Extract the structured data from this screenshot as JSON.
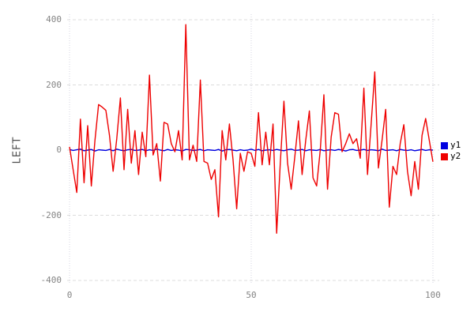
{
  "chart_data": {
    "type": "line",
    "title": "",
    "xlabel": "",
    "ylabel": "LEFT",
    "xlim": [
      0,
      100
    ],
    "ylim": [
      -400,
      400
    ],
    "xticks": [
      "0",
      "50",
      "100"
    ],
    "xtick_values": [
      0,
      50,
      100
    ],
    "yticks": [
      "400",
      "200",
      "0",
      "-200",
      "-400"
    ],
    "ytick_values": [
      400,
      200,
      0,
      -200,
      -400
    ],
    "grid": "horizontal dashed + vertical dotted, light gray",
    "legend_position": "right-middle",
    "x": [
      0,
      1,
      2,
      3,
      4,
      5,
      6,
      7,
      8,
      9,
      10,
      11,
      12,
      13,
      14,
      15,
      16,
      17,
      18,
      19,
      20,
      21,
      22,
      23,
      24,
      25,
      26,
      27,
      28,
      29,
      30,
      31,
      32,
      33,
      34,
      35,
      36,
      37,
      38,
      39,
      40,
      41,
      42,
      43,
      44,
      45,
      46,
      47,
      48,
      49,
      50,
      51,
      52,
      53,
      54,
      55,
      56,
      57,
      58,
      59,
      60,
      61,
      62,
      63,
      64,
      65,
      66,
      67,
      68,
      69,
      70,
      71,
      72,
      73,
      74,
      75,
      76,
      77,
      78,
      79,
      80,
      81,
      82,
      83,
      84,
      85,
      86,
      87,
      88,
      89,
      90,
      91,
      92,
      93,
      94,
      95,
      96,
      97,
      98,
      99,
      100
    ],
    "series": [
      {
        "name": "y1",
        "color": "#0000e0",
        "values": [
          2,
          -1,
          1,
          3,
          -2,
          0,
          2,
          -3,
          1,
          0,
          -1,
          2,
          -2,
          3,
          0,
          -2,
          1,
          2,
          -1,
          0,
          2,
          -2,
          1,
          -1,
          3,
          0,
          -2,
          2,
          -1,
          1,
          0,
          -3,
          2,
          1,
          -1,
          0,
          2,
          -2,
          1,
          0,
          -1,
          2,
          -3,
          1,
          2,
          0,
          -2,
          1,
          -1,
          0,
          3,
          -1,
          2,
          -2,
          0,
          1,
          -1,
          2,
          0,
          -2,
          1,
          3,
          -1,
          0,
          2,
          -2,
          1,
          0,
          -1,
          2,
          -2,
          0,
          1,
          -1,
          2,
          0,
          -3,
          1,
          2,
          -1,
          0,
          2,
          -1,
          1,
          0,
          -2,
          3,
          -1,
          0,
          1,
          -2,
          2,
          0,
          -1,
          1,
          -2,
          0,
          2,
          -1,
          1,
          0
        ]
      },
      {
        "name": "y2",
        "color": "#ee0000",
        "values": [
          10,
          -60,
          -130,
          95,
          -100,
          75,
          -110,
          30,
          140,
          132,
          122,
          45,
          -65,
          35,
          160,
          -60,
          125,
          -40,
          60,
          -75,
          55,
          -20,
          230,
          -15,
          20,
          -95,
          85,
          80,
          20,
          -5,
          60,
          -30,
          385,
          -30,
          15,
          -35,
          215,
          -35,
          -40,
          -90,
          -60,
          -205,
          60,
          -30,
          80,
          -30,
          -180,
          -10,
          -65,
          -5,
          -10,
          -50,
          115,
          -45,
          55,
          -45,
          80,
          -255,
          -40,
          150,
          -40,
          -120,
          -20,
          90,
          -75,
          30,
          120,
          -85,
          -110,
          0,
          170,
          -120,
          40,
          115,
          110,
          -5,
          20,
          50,
          20,
          35,
          -25,
          190,
          -75,
          80,
          240,
          -55,
          30,
          125,
          -175,
          -50,
          -75,
          20,
          78,
          -65,
          -140,
          -35,
          -120,
          45,
          97,
          30,
          -36
        ]
      }
    ]
  },
  "style": {
    "background": "#ffffff",
    "grid_color": "#dcdcdc",
    "vgrid_color": "#d6d6e0",
    "tick_label_color": "#848484",
    "axis_title_color": "#4d4d4d",
    "legend_text_color": "#000000"
  }
}
